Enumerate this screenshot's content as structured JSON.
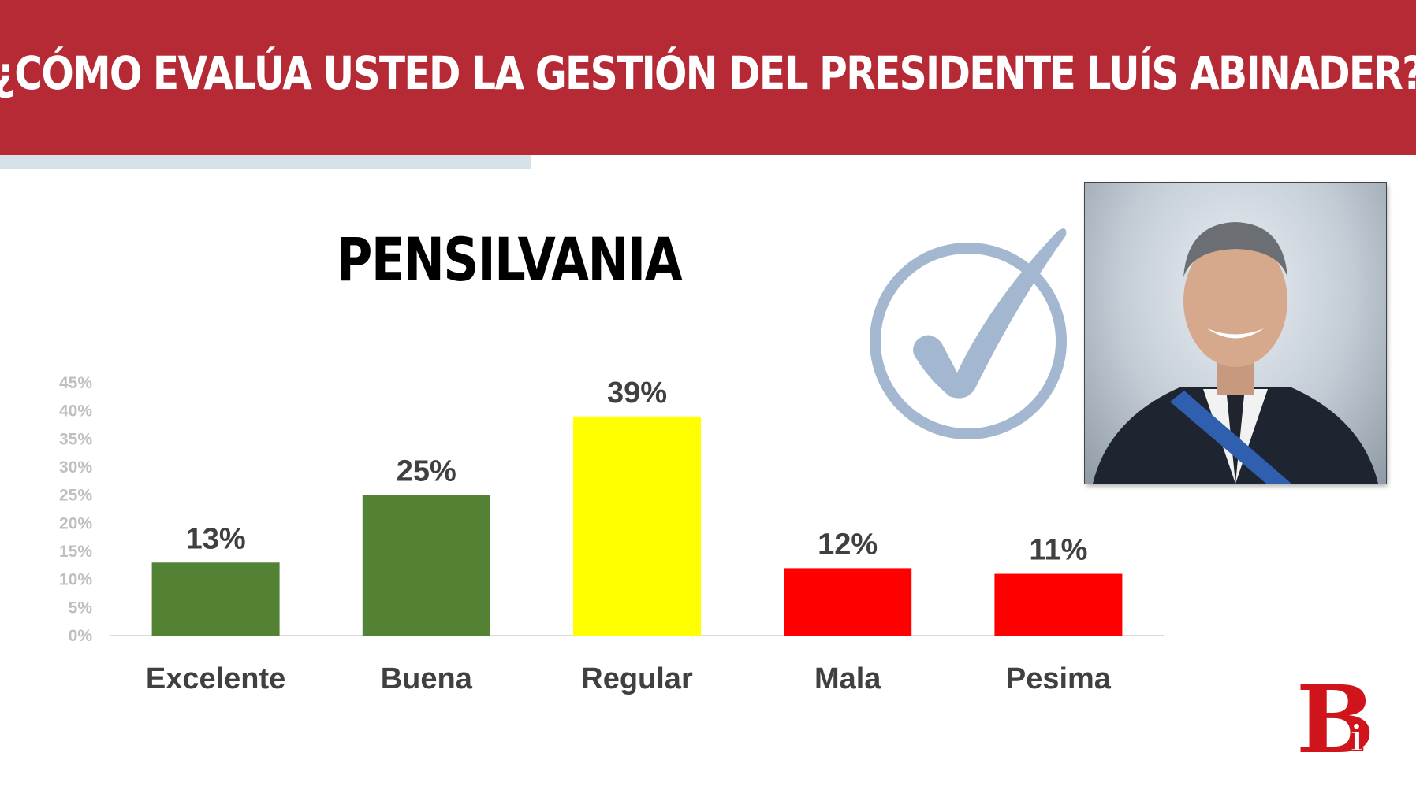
{
  "header": {
    "title": "¿CÓMO EVALÚA USTED LA GESTIÓN DEL PRESIDENTE LUÍS ABINADER?"
  },
  "chart_data": {
    "type": "bar",
    "title": "PENSILVANIA",
    "categories": [
      "Excelente",
      "Buena",
      "Regular",
      "Mala",
      "Pesima"
    ],
    "values": [
      13,
      25,
      39,
      12,
      11
    ],
    "data_labels": [
      "13%",
      "25%",
      "39%",
      "12%",
      "11%"
    ],
    "bar_colors": [
      "#548235",
      "#548235",
      "#ffff00",
      "#ff0000",
      "#ff0000"
    ],
    "ylim": [
      0,
      45
    ],
    "yticks": [
      0,
      5,
      10,
      15,
      20,
      25,
      30,
      35,
      40,
      45
    ],
    "ytick_labels": [
      "0%",
      "5%",
      "10%",
      "15%",
      "20%",
      "25%",
      "30%",
      "35%",
      "40%",
      "45%"
    ],
    "grid": false,
    "legend": "none"
  },
  "colors": {
    "header_bg": "#b52a35",
    "accent_strip": "#d6e2ea",
    "check_icon": "#a3b8d0",
    "logo": "#d0141c"
  },
  "icons": {
    "check": "checkmark-circle-icon",
    "photo": "president-portrait",
    "logo": "bi-logo"
  },
  "logo": {
    "text_main": "B",
    "text_sub": "i"
  }
}
